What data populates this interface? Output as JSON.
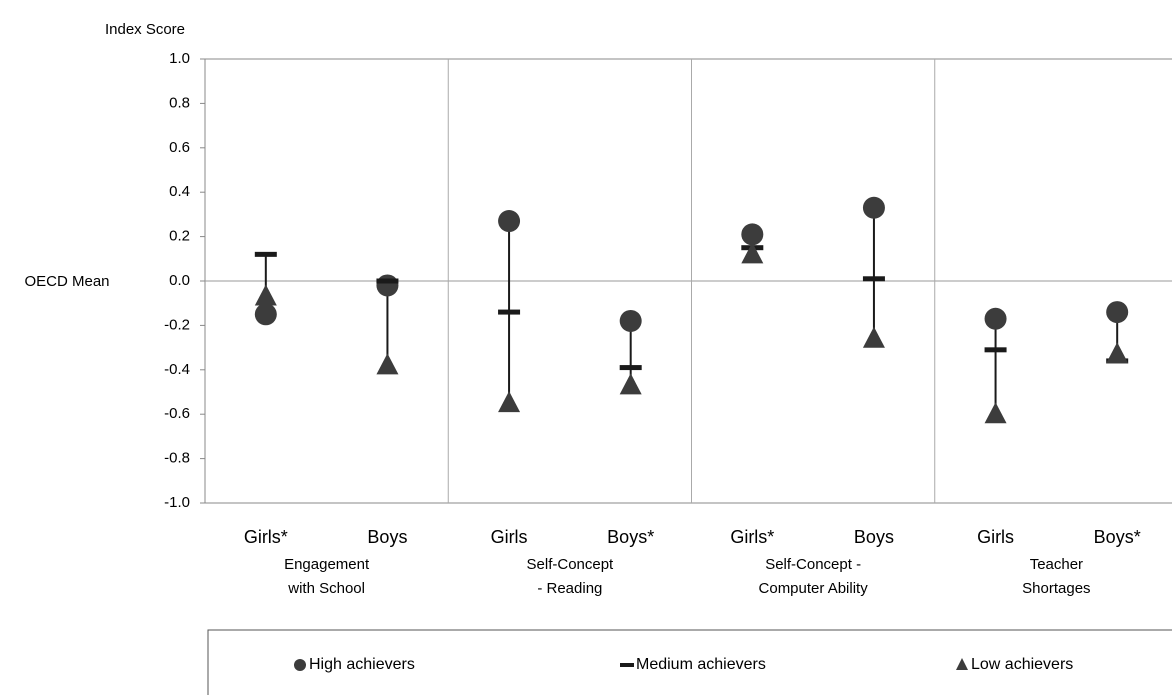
{
  "chart_data": {
    "type": "dot-range",
    "y_axis_title": "Index Score",
    "reference_label": "OECD Mean",
    "categories": [
      "Girls*",
      "Boys",
      "Girls",
      "Boys*",
      "Girls*",
      "Boys",
      "Girls",
      "Boys*"
    ],
    "groups": [
      [
        "Engagement",
        "with School"
      ],
      [
        "Self-Concept",
        "- Reading"
      ],
      [
        "Self-Concept -",
        "Computer Ability"
      ],
      [
        "Teacher",
        "Shortages"
      ]
    ],
    "series": [
      {
        "name": "High achievers",
        "marker": "circle",
        "color": "#3c3c3c",
        "values": [
          -0.15,
          -0.02,
          0.27,
          -0.18,
          0.21,
          0.33,
          -0.17,
          -0.14
        ]
      },
      {
        "name": "Medium achievers",
        "marker": "dash",
        "color": "#1a1a1a",
        "values": [
          0.12,
          0.0,
          -0.14,
          -0.39,
          0.15,
          0.01,
          -0.31,
          -0.36
        ]
      },
      {
        "name": "Low achievers",
        "marker": "triangle",
        "color": "#3c3c3c",
        "values": [
          -0.07,
          -0.38,
          -0.55,
          -0.47,
          0.12,
          -0.26,
          -0.6,
          -0.33
        ]
      }
    ],
    "ylim": [
      -1,
      1
    ],
    "yticks": [
      {
        "value": -1,
        "label": "-1.0"
      },
      -0.8,
      -0.6,
      -0.4,
      -0.2,
      {
        "value": 0,
        "label": "0.0"
      },
      0.2,
      0.4,
      0.6,
      0.8,
      {
        "value": 1,
        "label": "1.0"
      }
    ]
  }
}
